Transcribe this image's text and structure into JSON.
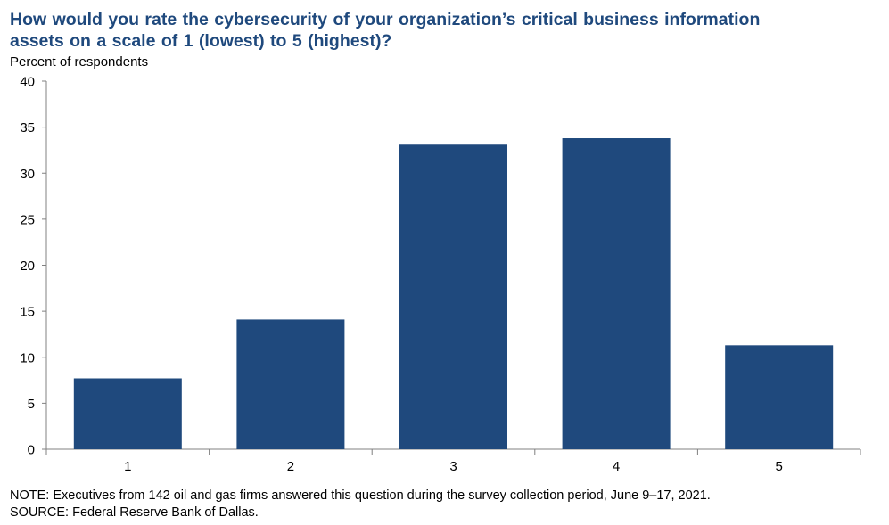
{
  "chart_data": {
    "type": "bar",
    "title_lines": [
      "How would you rate the cybersecurity of your organization’s critical business information",
      "assets on a scale of 1 (lowest) to 5 (highest)?"
    ],
    "ylabel": "Percent of respondents",
    "xlabel": "",
    "categories": [
      "1",
      "2",
      "3",
      "4",
      "5"
    ],
    "values": [
      7.7,
      14.1,
      33.1,
      33.8,
      11.3
    ],
    "ylim": [
      0,
      40
    ],
    "yticks": [
      "0",
      "5",
      "10",
      "15",
      "20",
      "25",
      "30",
      "35",
      "40"
    ],
    "bar_color": "#1f497d",
    "grid": false,
    "legend": "none"
  },
  "footnotes": [
    "NOTE: Executives from 142 oil and gas firms answered this question during the survey collection period, June 9–17, 2021.",
    "SOURCE: Federal Reserve Bank of Dallas."
  ]
}
